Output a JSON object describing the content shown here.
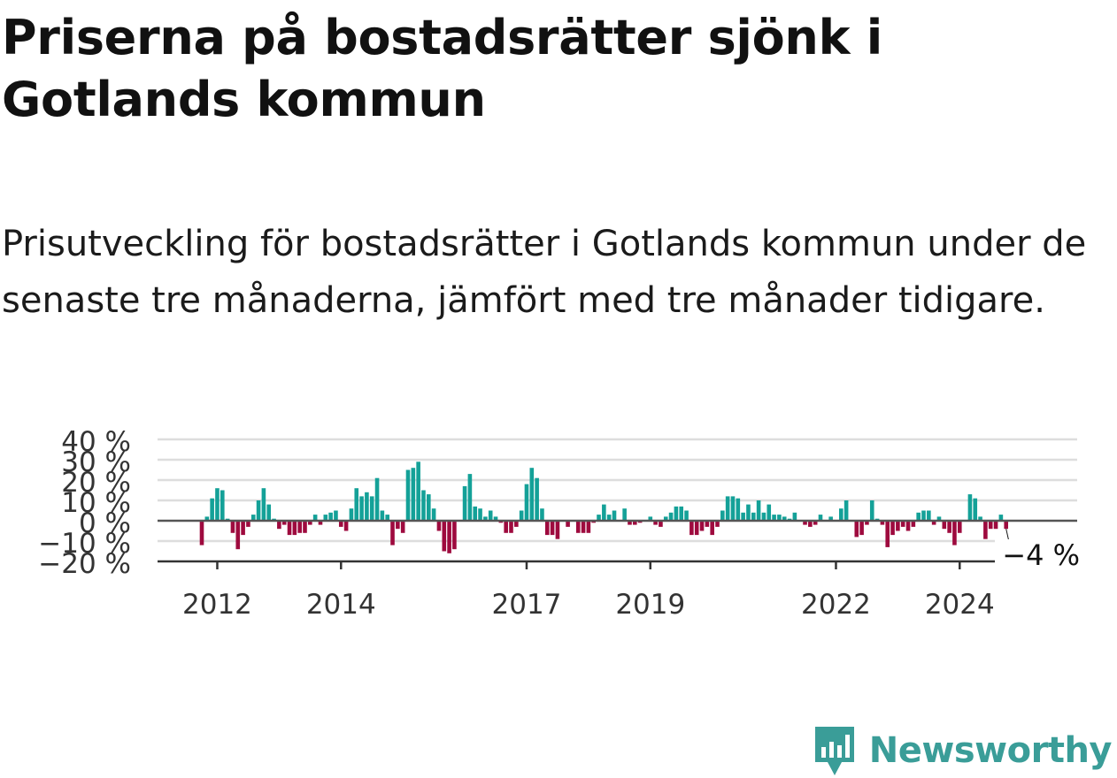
{
  "header": {
    "title": "Priserna på bostadsrätter sjönk i Gotlands kommun",
    "subtitle": "Prisutveckling för bostadsrätter i Gotlands kommun under de senaste tre månaderna, jämfört med tre månader tidigare."
  },
  "brand": {
    "name": "Newsworthy",
    "color": "#3a9d98",
    "icon": "newsworthy-logo-icon"
  },
  "chart_data": {
    "type": "bar",
    "title": "Priserna på bostadsrätter sjönk i Gotlands kommun",
    "subtitle": "Prisutveckling för bostadsrätter i Gotlands kommun under de senaste tre månaderna, jämfört med tre månader tidigare.",
    "xlabel": "",
    "ylabel": "",
    "unit": "%",
    "x_start": "2011-10",
    "frequency": "monthly",
    "ylim": [
      -20,
      40
    ],
    "yticks": [
      -20,
      -10,
      0,
      10,
      20,
      30,
      40
    ],
    "ytick_labels": [
      "−20 %",
      "−10 %",
      "0 %",
      "10 %",
      "20 %",
      "30 %",
      "40 %"
    ],
    "xtick_labels": [
      "2012",
      "2014",
      "2017",
      "2019",
      "2022",
      "2024"
    ],
    "xtick_dates": [
      "2012-01",
      "2014-01",
      "2017-01",
      "2019-01",
      "2022-01",
      "2024-01"
    ],
    "grid": true,
    "colors": {
      "positive": "#14a198",
      "negative": "#9e0a3e",
      "grid": "#dddddd",
      "zero_line": "#555555",
      "axis": "#333333"
    },
    "annotation": {
      "text": "−4 %",
      "value": -4
    },
    "values": [
      -12,
      2,
      11,
      16,
      15,
      1,
      -6,
      -14,
      -7,
      -3,
      3,
      10,
      16,
      8,
      1,
      -4,
      -2,
      -7,
      -7,
      -6,
      -6,
      -2,
      3,
      -2,
      3,
      4,
      5,
      -3,
      -5,
      6,
      16,
      12,
      14,
      12,
      21,
      5,
      3,
      -12,
      -4,
      -6,
      25,
      26,
      29,
      15,
      13,
      6,
      -5,
      -15,
      -16,
      -14,
      0,
      17,
      23,
      7,
      6,
      2,
      5,
      2,
      -1,
      -6,
      -6,
      -3,
      5,
      18,
      26,
      21,
      6,
      -7,
      -7,
      -9,
      0,
      -3,
      0,
      -6,
      -6,
      -6,
      -1,
      3,
      8,
      3,
      5,
      0,
      6,
      -2,
      -2,
      -1,
      0,
      2,
      -2,
      -3,
      2,
      4,
      7,
      7,
      5,
      -7,
      -7,
      -5,
      -3,
      -7,
      -3,
      5,
      12,
      12,
      11,
      4,
      8,
      4,
      10,
      4,
      8,
      3,
      3,
      2,
      1,
      4,
      0,
      -2,
      -3,
      -2,
      3,
      0,
      2,
      0,
      6,
      10,
      0,
      -8,
      -7,
      -2,
      10,
      1,
      -2,
      -13,
      -7,
      -5,
      -3,
      -5,
      -3,
      4,
      5,
      5,
      -2,
      2,
      -4,
      -6,
      -12,
      -6,
      0,
      13,
      11,
      2,
      -9,
      -4,
      -4,
      3,
      -4
    ]
  }
}
